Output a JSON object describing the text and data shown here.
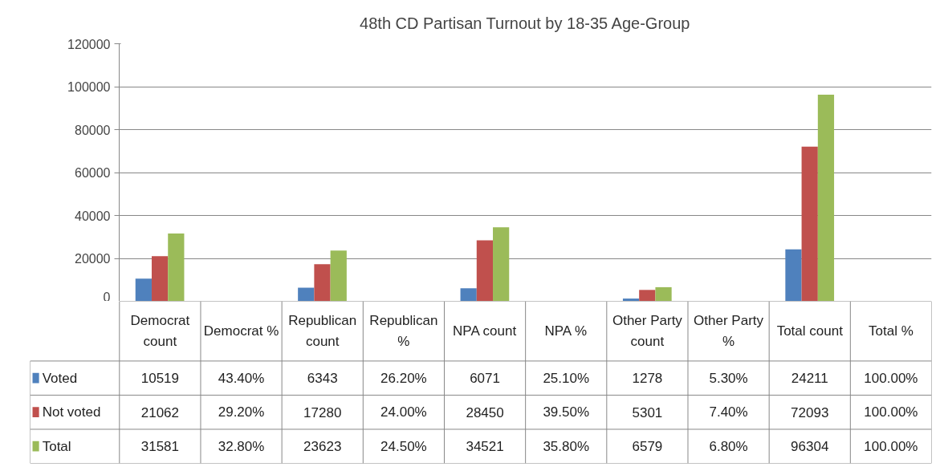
{
  "chart_data": {
    "type": "bar",
    "title": "48th CD Partisan Turnout by 18-35 Age-Group",
    "categories": [
      "Democrat count",
      "Democrat %",
      "Republican count",
      "Republican %",
      "NPA count",
      "NPA %",
      "Other Party count",
      "Other Party %",
      "Total count",
      "Total %"
    ],
    "series": [
      {
        "name": "Voted",
        "color": "#4f81bd",
        "values": [
          10519,
          0.434,
          6343,
          0.262,
          6071,
          0.251,
          1278,
          0.053,
          24211,
          1.0
        ],
        "value_labels": [
          "10519",
          "43.40%",
          "6343",
          "26.20%",
          "6071",
          "25.10%",
          "1278",
          "5.30%",
          "24211",
          "100.00%"
        ]
      },
      {
        "name": "Not voted",
        "color": "#c0504d",
        "values": [
          21062,
          0.292,
          17280,
          0.24,
          28450,
          0.395,
          5301,
          0.074,
          72093,
          1.0
        ],
        "value_labels": [
          "21062",
          "29.20%",
          "17280",
          "24.00%",
          "28450",
          "39.50%",
          "5301",
          "7.40%",
          "72093",
          "100.00%"
        ]
      },
      {
        "name": "Total",
        "color": "#9bbb59",
        "values": [
          31581,
          0.328,
          23623,
          0.245,
          34521,
          0.358,
          6579,
          0.068,
          96304,
          1.0
        ],
        "value_labels": [
          "31581",
          "32.80%",
          "23623",
          "24.50%",
          "34521",
          "35.80%",
          "6579",
          "6.80%",
          "96304",
          "100.00%"
        ]
      }
    ],
    "ylim": [
      0,
      120000
    ],
    "yticks": [
      0,
      20000,
      40000,
      60000,
      80000,
      100000,
      120000
    ],
    "grid": "y",
    "legend": "bottom"
  }
}
